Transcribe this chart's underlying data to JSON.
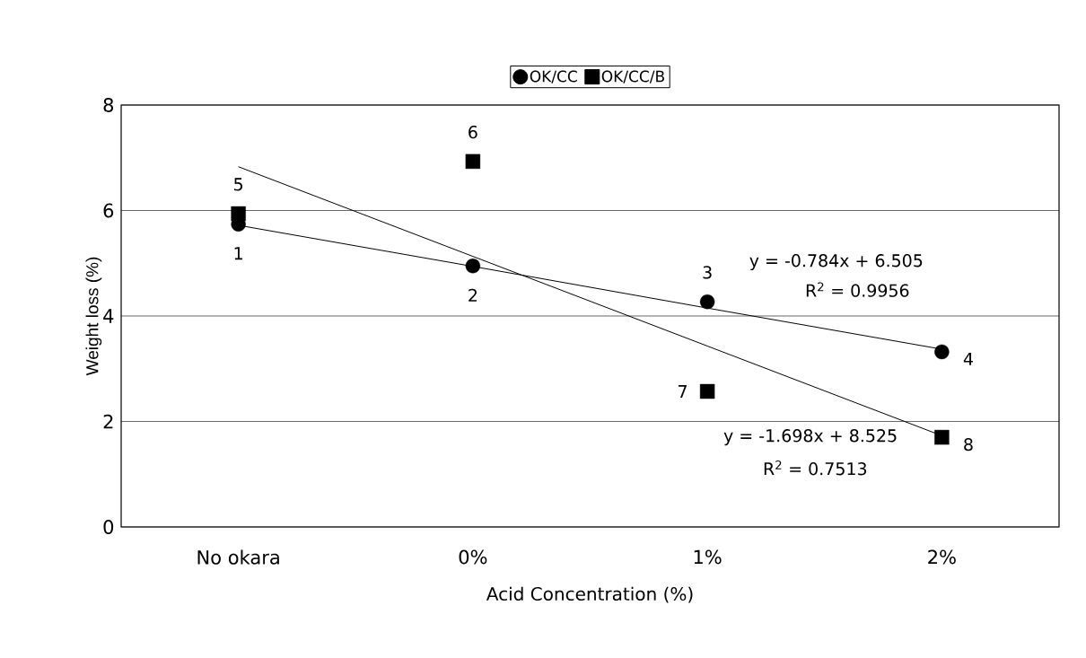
{
  "chart_data": {
    "type": "scatter",
    "xlabel": "Acid Concentration (%)",
    "ylabel": "Weight loss (%)",
    "categories": [
      "No okara",
      "0%",
      "1%",
      "2%"
    ],
    "series": [
      {
        "name": "OK/CC",
        "color": "#000000",
        "marker": "circle",
        "values": [
          5.74,
          4.95,
          4.27,
          3.32
        ]
      },
      {
        "name": "OK/CC/B",
        "color": "#000000",
        "marker": "square",
        "values": [
          5.94,
          6.93,
          2.57,
          1.7
        ]
      },
      {
        "type": "line",
        "color": "#000000",
        "marker": "none",
        "values": [
          5.72,
          4.94,
          4.15,
          3.37
        ]
      },
      {
        "type": "line",
        "color": "#000000",
        "marker": "none",
        "values": [
          6.83,
          5.13,
          3.43,
          1.73
        ]
      }
    ],
    "ylim": [
      0,
      8
    ],
    "yticks": [
      0,
      2,
      4,
      6,
      8
    ],
    "grid": "y",
    "legend": "top",
    "annotations": [
      {
        "text": "1",
        "x": "No okara",
        "y": 5.74
      },
      {
        "text": "2",
        "x": "0%",
        "y": 4.95
      },
      {
        "text": "3",
        "x": "1%",
        "y": 4.27
      },
      {
        "text": "4",
        "x": "2%",
        "y": 3.32
      },
      {
        "text": "5",
        "x": "No okara",
        "y": 5.94
      },
      {
        "text": "6",
        "x": "0%",
        "y": 6.93
      },
      {
        "text": "7",
        "x": "1%",
        "y": 2.57
      },
      {
        "text": "8",
        "x": "2%",
        "y": 1.7
      },
      "y = -0.784x + 6.505",
      "R$^{2}$ = 0.9956",
      "y = -1.698x + 8.525",
      "R$^{2}$ = 0.7513"
    ]
  }
}
